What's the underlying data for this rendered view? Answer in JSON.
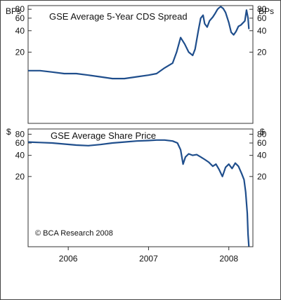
{
  "chart_data": [
    {
      "type": "line",
      "title": "GSE Average 5-Year CDS Spread",
      "unit_left": "BPs",
      "unit_right": "BPs",
      "yticks": [
        20,
        40,
        60,
        80
      ],
      "ylim": [
        2,
        90
      ],
      "xlim": [
        2005.5,
        2008.3
      ],
      "color": "#1f4e8c",
      "series": [
        {
          "x": [
            2005.5,
            2005.65,
            2005.8,
            2005.95,
            2006.1,
            2006.25,
            2006.4,
            2006.55,
            2006.7,
            2006.85,
            2007.0,
            2007.1,
            2007.2,
            2007.3,
            2007.35,
            2007.4,
            2007.45,
            2007.5,
            2007.55,
            2007.58,
            2007.62,
            2007.65,
            2007.68,
            2007.7,
            2007.73,
            2007.76,
            2007.8,
            2007.83,
            2007.86,
            2007.88,
            2007.9,
            2007.93,
            2007.96,
            2008.0,
            2008.03,
            2008.06,
            2008.09,
            2008.12,
            2008.15,
            2008.18,
            2008.2,
            2008.22,
            2008.24,
            2008.25
          ],
          "y": [
            11,
            11,
            10.5,
            10,
            10,
            9.5,
            9,
            8.5,
            8.5,
            9,
            9.5,
            10,
            12,
            14,
            20,
            32,
            26,
            20,
            18,
            22,
            40,
            60,
            66,
            50,
            45,
            55,
            62,
            70,
            80,
            84,
            87,
            82,
            72,
            52,
            38,
            35,
            39,
            46,
            48,
            52,
            55,
            78,
            60,
            42
          ]
        }
      ]
    },
    {
      "type": "line",
      "title": "GSE Average Share Price",
      "unit_left": "$",
      "unit_right": "$",
      "yticks": [
        20,
        40,
        60,
        80
      ],
      "ylim": [
        2,
        95
      ],
      "xlim": [
        2005.5,
        2008.3
      ],
      "xticks": [
        "2006",
        "2007",
        "2008"
      ],
      "xtick_positions": [
        2006,
        2007,
        2008
      ],
      "color": "#1f4e8c",
      "annotation": "© BCA Research 2008",
      "series": [
        {
          "x": [
            2005.5,
            2005.65,
            2005.8,
            2005.95,
            2006.1,
            2006.25,
            2006.4,
            2006.55,
            2006.7,
            2006.85,
            2007.0,
            2007.1,
            2007.2,
            2007.3,
            2007.36,
            2007.4,
            2007.43,
            2007.46,
            2007.5,
            2007.55,
            2007.6,
            2007.65,
            2007.7,
            2007.75,
            2007.8,
            2007.84,
            2007.88,
            2007.92,
            2007.96,
            2008.0,
            2008.04,
            2008.08,
            2008.12,
            2008.16,
            2008.19,
            2008.21,
            2008.23,
            2008.24,
            2008.25
          ],
          "y": [
            62,
            61,
            60,
            58,
            56,
            55,
            57,
            60,
            62,
            64,
            65,
            66,
            66,
            64,
            60,
            48,
            30,
            38,
            42,
            40,
            41,
            38,
            35,
            32,
            28,
            30,
            25,
            20,
            27,
            30,
            26,
            31,
            28,
            22,
            18,
            12,
            6,
            3,
            2
          ]
        }
      ]
    }
  ]
}
